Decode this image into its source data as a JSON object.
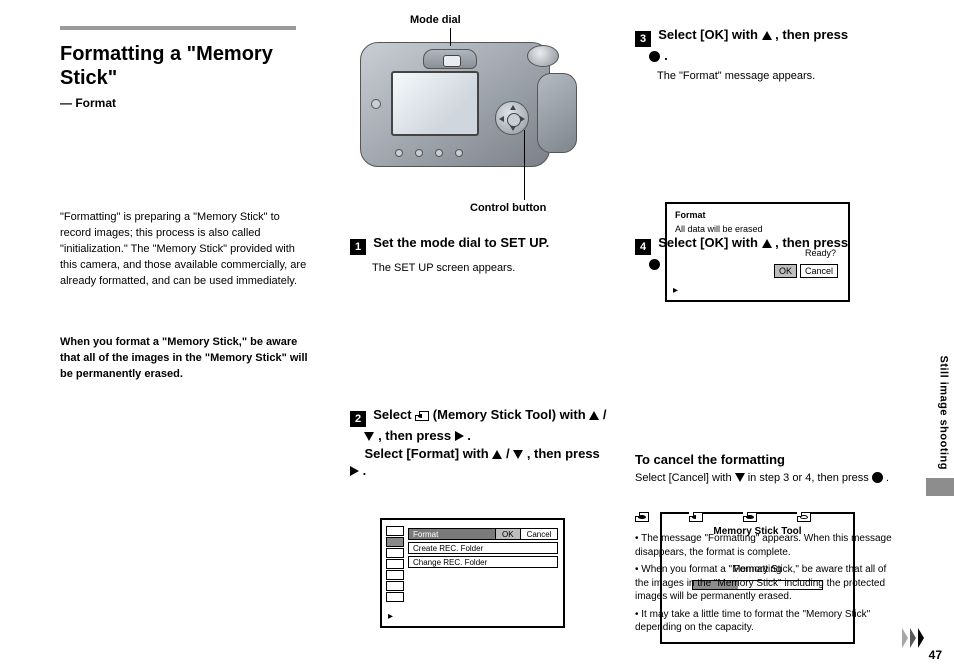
{
  "page_number": "47",
  "spine_section_label": "Still image shooting",
  "side_tab_color": "#8d8d8d",
  "header_rule_color": "#9a9a9a",
  "heading": "Formatting a \"Memory Stick\"",
  "subheading": "— Format",
  "mode_label": "Mode dial",
  "ctrl_label": "Control button",
  "intro_para": "\"Formatting\" is preparing a \"Memory Stick\" to record images; this process is also called \"initialization.\" The \"Memory Stick\" provided with this camera, and those available commercially, are already formatted, and can be used immediately.",
  "warn_para": "When you format a \"Memory Stick,\" be aware that all of the images in the \"Memory Stick\" will be permanently erased.",
  "step1_text": "Set the mode dial to SET UP.",
  "step1_note": "The SET UP screen appears.",
  "step2_line1_pre": "Select ",
  "step2_line1_icon_label": " (Memory Stick Tool) with ",
  "step2_line1_post": "/",
  "step2_line2_pre": ", then press ",
  "step2_line2_post": ".",
  "step2_line3_pre": "Select [Format] with ",
  "step2_line3_mid": "/",
  "step2_line3_post": ", then press ",
  "step2_line3_end": ".",
  "menu": {
    "rail": [
      "",
      "",
      "",
      "",
      "",
      "",
      ""
    ],
    "rail_selected_index": 1,
    "row1_label": "Format",
    "row1_opts": [
      "OK",
      "Cancel"
    ],
    "row1_selected": 0,
    "row2_label": "Create REC. Folder",
    "row3_label": "Change REC. Folder"
  },
  "step3_line_pre": "Select [OK] with ",
  "step3_line_post": ", then press ",
  "step3_line_end": ".",
  "step3_sub": "The \"Format\" message appears.",
  "lcd3": {
    "title": "Format",
    "body": "All data will be erased",
    "ready": "Ready?",
    "opts": [
      "OK",
      "Cancel"
    ],
    "selected": 0
  },
  "step4_line_pre": "Select [OK] with ",
  "step4_line_post": ", then press ",
  "step4_line_end": ".",
  "fmt": {
    "l1": "Memory Stick Tool",
    "l2": "Formatting",
    "progress_pct": 35,
    "bar_fill_color": "#8d8d8d"
  },
  "cancel_heading": "To cancel the formatting",
  "cancel_body_pre": "Select [Cancel] with ",
  "cancel_body_post": " in step 3 or 4, then press ",
  "cancel_body_end": ".",
  "notes": [
    "The message \"Formatting\" appears. When this message disappears, the format is complete.",
    "When you format a \"Memory Stick,\" be aware that all of the images in the \"Memory Stick\" including the protected images will be permanently erased.",
    "It may take a little time to format the \"Memory Stick\" depending on the capacity."
  ],
  "ms_icons_row_title": "",
  "ms_variants_label": [
    "",
    "",
    "",
    ""
  ]
}
